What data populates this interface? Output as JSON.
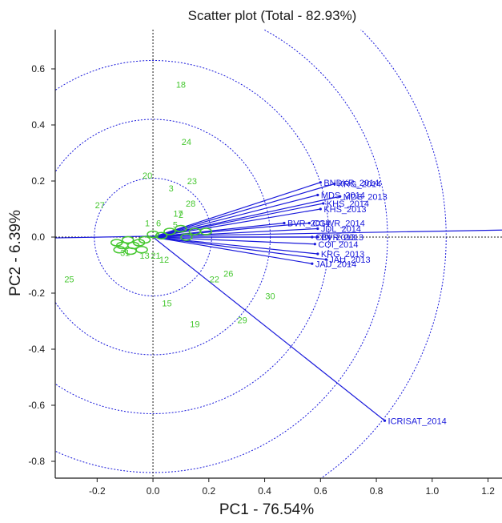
{
  "chart_data": {
    "type": "scatter",
    "title": "Scatter plot (Total - 82.93%)",
    "xlabel": "PC1 - 76.54%",
    "ylabel": "PC2 - 6.39%",
    "xlim": [
      -0.35,
      1.25
    ],
    "ylim": [
      -0.86,
      0.74
    ],
    "xticks": [
      "-0.2",
      "0.0",
      "0.2",
      "0.4",
      "0.6",
      "0.8",
      "1.0",
      "1.2"
    ],
    "xtick_values": [
      -0.2,
      0.0,
      0.2,
      0.4,
      0.6,
      0.8,
      1.0,
      1.2
    ],
    "yticks": [
      "0.6",
      "0.4",
      "0.2",
      "0.0",
      "-0.2",
      "-0.4",
      "-0.6",
      "-0.8"
    ],
    "ytick_values": [
      0.6,
      0.4,
      0.2,
      0.0,
      -0.2,
      -0.4,
      -0.6,
      -0.8
    ],
    "circle_radii": [
      0.21,
      0.42,
      0.63,
      0.84,
      1.05
    ],
    "grid": false,
    "colors": {
      "points": "#45c72f",
      "vectors": "#1a1adb",
      "axes": "#1a1a1a"
    },
    "points": [
      {
        "label": "18",
        "x": 0.1,
        "y": 0.545
      },
      {
        "label": "24",
        "x": 0.12,
        "y": 0.34
      },
      {
        "label": "20",
        "x": -0.02,
        "y": 0.22
      },
      {
        "label": "23",
        "x": 0.14,
        "y": 0.2
      },
      {
        "label": "3",
        "x": 0.065,
        "y": 0.175
      },
      {
        "label": "27",
        "x": -0.19,
        "y": 0.115
      },
      {
        "label": "28",
        "x": 0.135,
        "y": 0.12
      },
      {
        "label": "2",
        "x": 0.1,
        "y": 0.08
      },
      {
        "label": "17",
        "x": 0.09,
        "y": 0.085
      },
      {
        "label": "1",
        "x": -0.02,
        "y": 0.05
      },
      {
        "label": "6",
        "x": 0.02,
        "y": 0.05
      },
      {
        "label": "5",
        "x": 0.08,
        "y": 0.045
      },
      {
        "label": "26",
        "x": 0.27,
        "y": -0.13
      },
      {
        "label": "22",
        "x": 0.22,
        "y": -0.15
      },
      {
        "label": "25",
        "x": -0.3,
        "y": -0.15
      },
      {
        "label": "30",
        "x": 0.42,
        "y": -0.21
      },
      {
        "label": "15",
        "x": 0.05,
        "y": -0.235
      },
      {
        "label": "19",
        "x": 0.15,
        "y": -0.31
      },
      {
        "label": "29",
        "x": 0.32,
        "y": -0.295
      },
      {
        "label": "12",
        "x": 0.04,
        "y": -0.08
      },
      {
        "label": "13",
        "x": -0.03,
        "y": -0.065
      },
      {
        "label": "21",
        "x": 0.01,
        "y": -0.065
      },
      {
        "label": "31",
        "x": -0.1,
        "y": -0.055
      }
    ],
    "vectors": [
      {
        "label": "BNDKR_2014",
        "x": 0.6,
        "y": 0.195
      },
      {
        "label": "KRG_2014",
        "x": 0.65,
        "y": 0.19
      },
      {
        "label": "MDS_2014",
        "x": 0.59,
        "y": 0.15
      },
      {
        "label": "MDS_2013",
        "x": 0.67,
        "y": 0.145
      },
      {
        "label": "KHS_2014",
        "x": 0.61,
        "y": 0.12
      },
      {
        "label": "KHS_2013",
        "x": 0.6,
        "y": 0.1
      },
      {
        "label": "BVR_2014",
        "x": 0.47,
        "y": 0.05
      },
      {
        "label": "CGWR_2014",
        "x": 0.56,
        "y": 0.05
      },
      {
        "label": "JDL_2014",
        "x": 0.59,
        "y": 0.03
      },
      {
        "label": "COI_2013",
        "x": 0.57,
        "y": 0.0
      },
      {
        "label": "BVR_2013",
        "x": 0.59,
        "y": 0.0
      },
      {
        "label": "COI_2014",
        "x": 0.58,
        "y": -0.025
      },
      {
        "label": "KRG_2013",
        "x": 0.59,
        "y": -0.06
      },
      {
        "label": "JAU_2013",
        "x": 0.62,
        "y": -0.08
      },
      {
        "label": "JAU_2014",
        "x": 0.57,
        "y": -0.095
      },
      {
        "label": "ICRISAT_2014",
        "x": 0.83,
        "y": -0.655
      }
    ],
    "extra_vector_end": {
      "x": 1.25,
      "y": 0.025
    }
  }
}
